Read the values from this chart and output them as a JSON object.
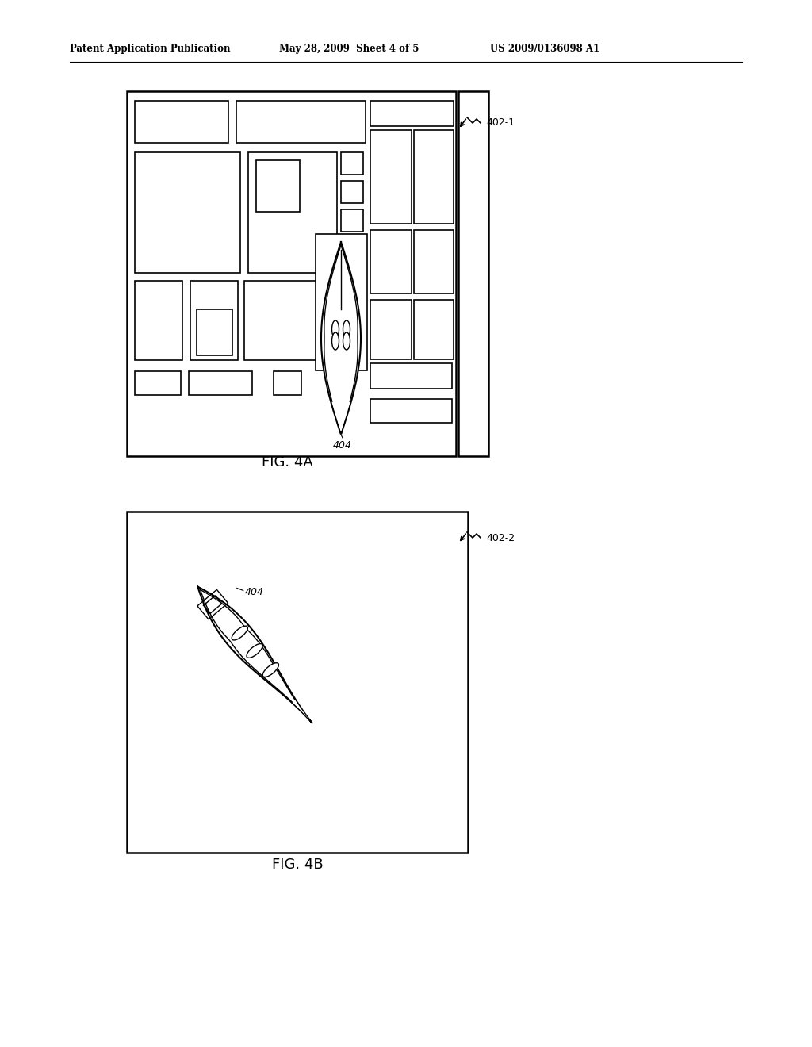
{
  "bg_color": "#ffffff",
  "text_color": "#000000",
  "header_left": "Patent Application Publication",
  "header_mid": "May 28, 2009  Sheet 4 of 5",
  "header_right": "US 2009/0136098 A1",
  "fig4a_label": "FIG. 4A",
  "fig4b_label": "FIG. 4B",
  "label_402_1": "402-1",
  "label_402_2": "402-2",
  "label_404": "404",
  "lw_outer": 1.8,
  "lw_inner": 1.2
}
